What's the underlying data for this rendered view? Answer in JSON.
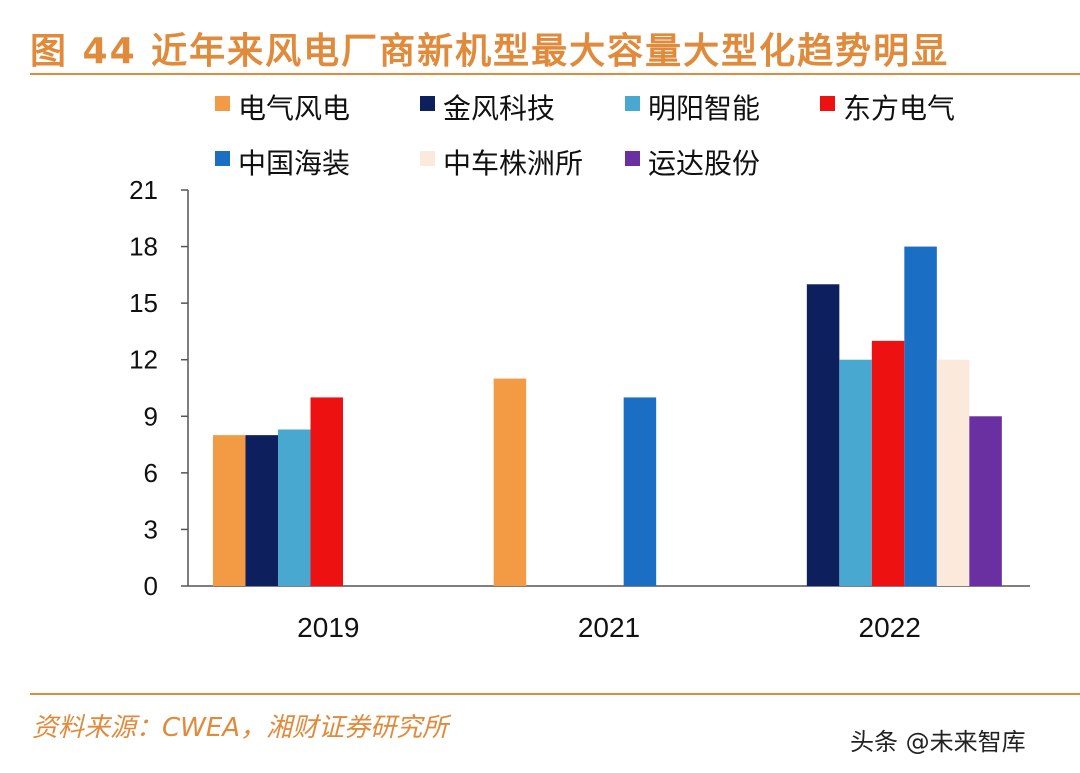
{
  "title": "图 44 近年来风电厂商新机型最大容量大型化趋势明显",
  "source": "资料来源：CWEA，湘财证券研究所",
  "watermark": "头条 @未来智库",
  "chart_data": {
    "type": "bar",
    "categories": [
      "2019",
      "2021",
      "2022"
    ],
    "ylim": [
      0,
      21
    ],
    "yticks": [
      0,
      3,
      6,
      9,
      12,
      15,
      18,
      21
    ],
    "xlabel": "",
    "ylabel": "",
    "legend_position": "top",
    "series": [
      {
        "name": "电气风电",
        "color": "#f39a45",
        "values": [
          8,
          11,
          null
        ]
      },
      {
        "name": "金风科技",
        "color": "#0d1f5c",
        "values": [
          8,
          null,
          16
        ]
      },
      {
        "name": "明阳智能",
        "color": "#49a8cf",
        "values": [
          8.3,
          null,
          12
        ]
      },
      {
        "name": "东方电气",
        "color": "#ee1111",
        "values": [
          10,
          null,
          13
        ]
      },
      {
        "name": "中国海装",
        "color": "#1a6fc4",
        "values": [
          null,
          10,
          18
        ]
      },
      {
        "name": "中车株洲所",
        "color": "#fbe9dc",
        "values": [
          null,
          null,
          12
        ]
      },
      {
        "name": "运达股份",
        "color": "#6a2fa0",
        "values": [
          null,
          null,
          9
        ]
      }
    ]
  }
}
